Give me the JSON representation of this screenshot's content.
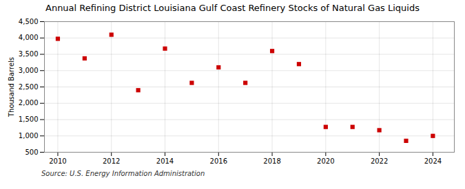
{
  "chart_data": {
    "type": "scatter",
    "title": "Annual Refining District Louisiana Gulf Coast Refinery Stocks of Natural Gas Liquids",
    "ylabel": "Thousand Barrels",
    "annotations": [
      "Source: U.S. Energy Information Administration"
    ],
    "x": [
      2010,
      2011,
      2012,
      2013,
      2014,
      2015,
      2016,
      2017,
      2018,
      2019,
      2020,
      2021,
      2022,
      2023,
      2024
    ],
    "values": [
      3975,
      3375,
      4100,
      2400,
      3675,
      2625,
      3100,
      2625,
      3600,
      3200,
      1275,
      1275,
      1175,
      850,
      1000
    ],
    "color": "#cc0000",
    "marker": "square",
    "xlim": [
      2009.5,
      2024.8
    ],
    "xticks": [
      2010,
      2012,
      2014,
      2016,
      2018,
      2020,
      2022,
      2024
    ],
    "ylim": [
      500,
      4500
    ],
    "yticks": [
      500,
      {
        "value": 1000,
        "label": "1,000"
      },
      {
        "value": 1500,
        "label": "1,500"
      },
      {
        "value": 2000,
        "label": "2,000"
      },
      {
        "value": 2500,
        "label": "2,500"
      },
      {
        "value": 3000,
        "label": "3,000"
      },
      {
        "value": 3500,
        "label": "3,500"
      },
      {
        "value": 4000,
        "label": "4,000"
      },
      {
        "value": 4500,
        "label": "4,500"
      }
    ],
    "grid": true
  }
}
